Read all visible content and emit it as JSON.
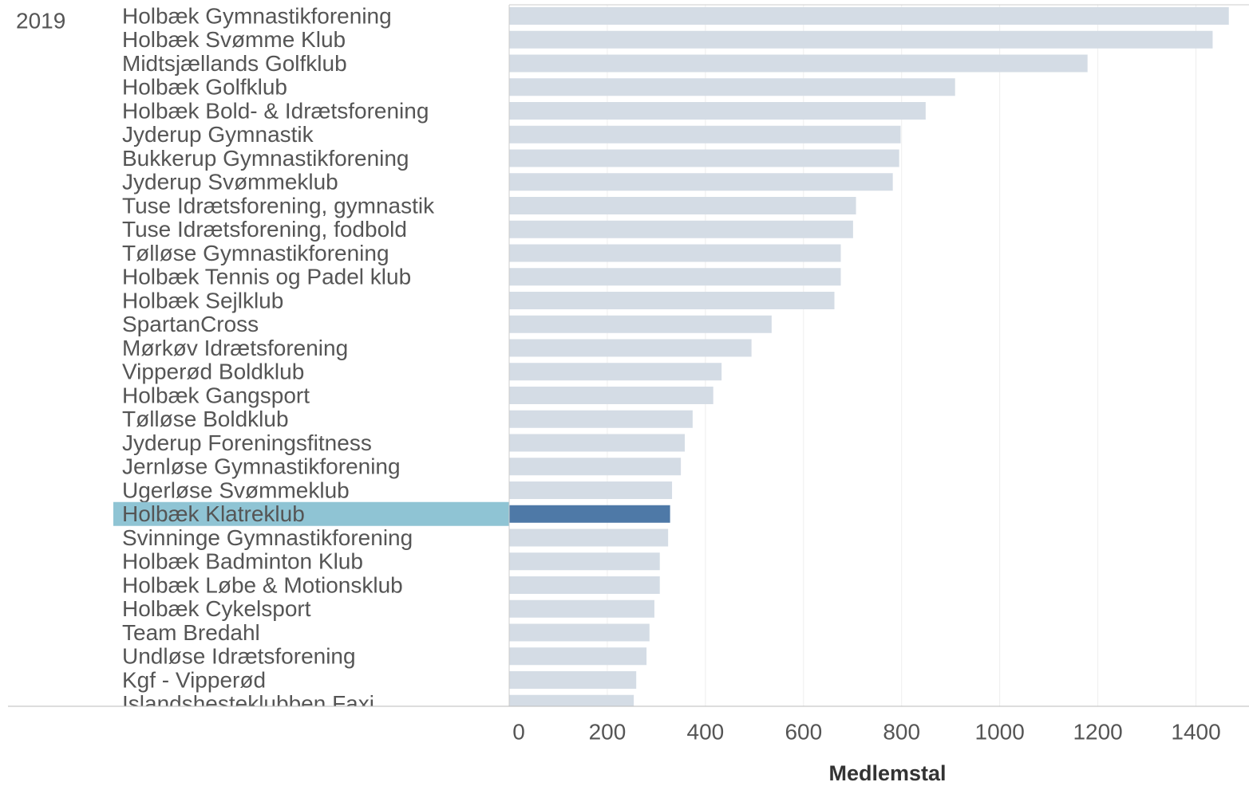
{
  "chart_data": {
    "type": "barh",
    "facet": "2019",
    "xlabel": "Medlemstal",
    "categories": [
      "Holbæk Gymnastikforening",
      "Holbæk Svømme Klub",
      "Midtsjællands Golfklub",
      "Holbæk Golfklub",
      "Holbæk Bold- & Idrætsforening",
      "Jyderup Gymnastik",
      "Bukkerup Gymnastikforening",
      "Jyderup Svømmeklub",
      "Tuse Idrætsforening, gymnastik",
      "Tuse Idrætsforening, fodbold",
      "Tølløse Gymnastikforening",
      "Holbæk Tennis og Padel klub",
      "Holbæk Sejlklub",
      "SpartanCross",
      "Mørkøv Idrætsforening",
      "Vipperød Boldklub",
      "Holbæk Gangsport",
      "Tølløse Boldklub",
      "Jyderup Foreningsfitness",
      "Jernløse Gymnastikforening",
      "Ugerløse Svømmeklub",
      "Holbæk Klatreklub",
      "Svinninge Gymnastikforening",
      "Holbæk Badminton Klub",
      "Holbæk Løbe & Motionsklub",
      "Holbæk Cykelsport",
      "Team Bredahl",
      "Undløse Idrætsforening",
      "Kgf - Vipperød",
      "Islandshesteklubben Faxi"
    ],
    "values": [
      1467,
      1434,
      1179,
      909,
      849,
      798,
      795,
      782,
      707,
      701,
      676,
      676,
      663,
      535,
      494,
      433,
      416,
      374,
      358,
      350,
      332,
      328,
      324,
      307,
      307,
      296,
      286,
      280,
      259,
      254
    ],
    "color": "#d4dce5",
    "highlight_index": 21,
    "highlight_color": "#4e79a7",
    "highlight_band_color": "#8fc4d4",
    "xlim": [
      0,
      1500
    ],
    "xticks": [
      0,
      200,
      400,
      600,
      800,
      1000,
      1200,
      1400
    ],
    "grid": true
  }
}
